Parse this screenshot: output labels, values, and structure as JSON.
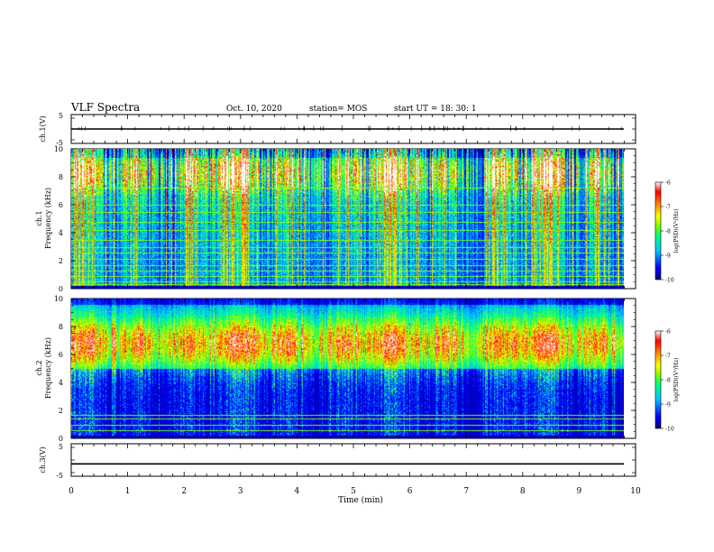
{
  "header": {
    "title": "VLF Spectra",
    "date": "Oct. 10, 2020",
    "station": "station= MOS",
    "start": "start  UT =  18: 30: 1"
  },
  "chart_data": [
    {
      "type": "line",
      "id": "ch1-waveform",
      "ylabel": "ch.1(V)",
      "ylim": [
        -5,
        5
      ],
      "yticks": [
        "5",
        "-5"
      ],
      "x": [
        0,
        10
      ],
      "values": [
        0,
        0
      ]
    },
    {
      "type": "heatmap",
      "id": "ch1-spectrogram",
      "ylabel_line1": "ch.1",
      "ylabel_line2": "Frequency (kHz)",
      "ylim": [
        0,
        10
      ],
      "yticks": [
        "0",
        "2",
        "4",
        "6",
        "8",
        "10"
      ],
      "xlim": [
        0,
        9.8
      ],
      "band_frequencies_khz": [
        0.3,
        0.5,
        0.9,
        1.3,
        1.7,
        2.1,
        2.6,
        3.0,
        3.5,
        4.2,
        4.8,
        5.5,
        6.0,
        7.2
      ],
      "colorbar": {
        "label": "log(PSD)(V²/Hz)",
        "range": [
          -10,
          -6
        ],
        "ticks": [
          "-6",
          "-7",
          "-8",
          "-9",
          "-10"
        ]
      }
    },
    {
      "type": "heatmap",
      "id": "ch2-spectrogram",
      "ylabel_line1": "ch.2",
      "ylabel_line2": "Frequency (kHz)",
      "ylim": [
        0,
        10
      ],
      "yticks": [
        "0",
        "2",
        "4",
        "6",
        "8",
        "10"
      ],
      "xlim": [
        0,
        9.8
      ],
      "band_frequencies_khz": [
        0.6,
        1.0,
        1.4,
        1.7
      ],
      "colorbar": {
        "label": "log(PSD)(V²/Hz)",
        "range": [
          -10,
          -6
        ],
        "ticks": [
          "-6",
          "-7",
          "-8",
          "-9",
          "-10"
        ]
      }
    },
    {
      "type": "line",
      "id": "ch3-waveform",
      "ylabel": "ch.3(V)",
      "ylim": [
        -5,
        5
      ],
      "yticks": [
        "5",
        "-5"
      ],
      "x": [
        0,
        10
      ],
      "values": [
        -1.2,
        -1.2
      ]
    }
  ],
  "xaxis": {
    "label": "Time  (min)",
    "range": [
      0,
      10
    ],
    "ticks": [
      "0",
      "1",
      "2",
      "3",
      "4",
      "5",
      "6",
      "7",
      "8",
      "9",
      "10"
    ]
  },
  "colors": {
    "colormap": [
      "#000080",
      "#0000ff",
      "#00c8ff",
      "#00ff80",
      "#80ff00",
      "#ffff00",
      "#ff8000",
      "#ff0000",
      "#ffb0b0",
      "#ffffff"
    ]
  }
}
